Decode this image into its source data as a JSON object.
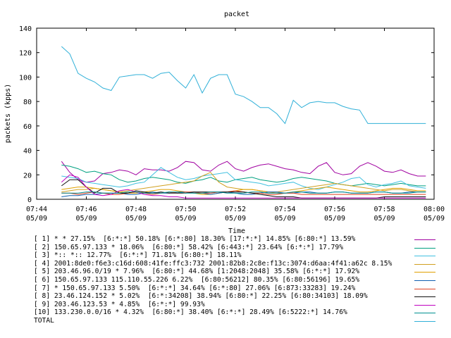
{
  "chart_data": {
    "type": "line",
    "title": "packet",
    "xlabel": "Time",
    "ylabel": "packets (kpps)",
    "ylim": [
      0,
      140
    ],
    "yticks": [
      0,
      20,
      40,
      60,
      80,
      100,
      120,
      140
    ],
    "xlim": [
      "07:44",
      "08:00"
    ],
    "xticks": [
      {
        "time": "07:44",
        "date": "05/09"
      },
      {
        "time": "07:46",
        "date": "05/09"
      },
      {
        "time": "07:48",
        "date": "05/09"
      },
      {
        "time": "07:50",
        "date": "05/09"
      },
      {
        "time": "07:52",
        "date": "05/09"
      },
      {
        "time": "07:54",
        "date": "05/09"
      },
      {
        "time": "07:56",
        "date": "05/09"
      },
      {
        "time": "07:58",
        "date": "05/09"
      },
      {
        "time": "08:00",
        "date": "05/09"
      }
    ],
    "x": [
      "07:45",
      "07:45:20",
      "07:45:40",
      "07:46",
      "07:46:20",
      "07:46:40",
      "07:47",
      "07:47:20",
      "07:47:40",
      "07:48",
      "07:48:20",
      "07:48:40",
      "07:49",
      "07:49:20",
      "07:49:40",
      "07:50",
      "07:50:20",
      "07:50:40",
      "07:51",
      "07:51:20",
      "07:51:40",
      "07:52",
      "07:52:20",
      "07:52:40",
      "07:53",
      "07:53:20",
      "07:53:40",
      "07:54",
      "07:54:20",
      "07:54:40",
      "07:55",
      "07:55:20",
      "07:55:40",
      "07:56",
      "07:56:20",
      "07:56:40",
      "07:57",
      "07:57:20",
      "07:57:40",
      "07:58",
      "07:58:20",
      "07:58:40",
      "07:59",
      "07:59:20",
      "07:59:40"
    ],
    "series": [
      {
        "legend": "[ 1] * * 27.15%  [6:*:*] 50.18% [6:*:80] 18.30% [17:*:*] 14.85% [6:80:*] 13.59%",
        "color": "#a000a0",
        "values": [
          31,
          22,
          16,
          14,
          15,
          21,
          22,
          24,
          23,
          20,
          25,
          24,
          24,
          23,
          26,
          31,
          30,
          24,
          23,
          28,
          31,
          25,
          23,
          26,
          28,
          29,
          27,
          25,
          24,
          22,
          21,
          27,
          30,
          22,
          20,
          21,
          27,
          30,
          27,
          23,
          22,
          24,
          21,
          19,
          19
        ]
      },
      {
        "legend": "[ 2] 150.65.97.133 * 18.06%  [6:80:*] 58.42% [6:443:*] 23.64% [6:*:*] 17.79%",
        "color": "#00a080",
        "values": [
          28,
          27,
          25,
          22,
          23,
          21,
          20,
          16,
          14,
          15,
          17,
          18,
          17,
          16,
          14,
          13,
          15,
          16,
          18,
          15,
          14,
          16,
          17,
          18,
          16,
          15,
          14,
          15,
          17,
          18,
          17,
          16,
          15,
          13,
          12,
          11,
          12,
          13,
          12,
          11,
          12,
          13,
          12,
          11,
          11
        ]
      },
      {
        "legend": "[ 3] *:: *:: 12.77%  [6:*:*] 71.81% [6:80:*] 18.11%",
        "color": "#40c0e0",
        "values": [
          19,
          18,
          17,
          14,
          13,
          12,
          11,
          10,
          11,
          13,
          14,
          20,
          26,
          22,
          18,
          16,
          17,
          19,
          20,
          21,
          22,
          16,
          15,
          14,
          13,
          11,
          12,
          13,
          14,
          11,
          9,
          8,
          10,
          12,
          14,
          17,
          18,
          12,
          10,
          12,
          13,
          15,
          11,
          10,
          9
        ]
      },
      {
        "legend": "[ 4] 2001:8de0:f6e3:c16d:608:41fe:ffc3:732 2001:82b8:2c8e:f13c:3074:d6aa:4f41:a62c 8.15%",
        "color": "#d0a020",
        "values": [
          6,
          7,
          8,
          8,
          9,
          8,
          7,
          6,
          7,
          8,
          9,
          10,
          11,
          12,
          13,
          14,
          15,
          19,
          22,
          14,
          10,
          9,
          8,
          8,
          7,
          6,
          6,
          7,
          8,
          9,
          10,
          11,
          12,
          13,
          12,
          11,
          10,
          9,
          8,
          7,
          8,
          8,
          7,
          6,
          6
        ]
      },
      {
        "legend": "[ 5] 203.46.96.0/19 * 7.96%  [6:80:*] 44.68% [1:2048:2048] 35.58% [6:*:*] 17.92%",
        "color": "#e0a000",
        "values": [
          8,
          9,
          10,
          10,
          9,
          8,
          7,
          6,
          5,
          5,
          6,
          7,
          8,
          8,
          7,
          6,
          5,
          4,
          4,
          5,
          6,
          7,
          8,
          8,
          7,
          6,
          5,
          5,
          6,
          7,
          8,
          9,
          10,
          9,
          8,
          7,
          6,
          6,
          7,
          8,
          9,
          9,
          8,
          7,
          7
        ]
      },
      {
        "legend": "[ 6] 150.65.97.133 115.110.55.226 6.22%  [6:80:56212] 80.35% [6:80:56196] 19.65%",
        "color": "#1060b0",
        "values": [
          2,
          3,
          3,
          4,
          4,
          5,
          5,
          5,
          4,
          4,
          5,
          6,
          5,
          5,
          6,
          6,
          5,
          5,
          4,
          5,
          6,
          5,
          4,
          4,
          5,
          6,
          6,
          5,
          5,
          6,
          6,
          5,
          5,
          6,
          6,
          5,
          5,
          5,
          6,
          6,
          5,
          5,
          6,
          6,
          6
        ]
      },
      {
        "legend": "[ 7] * 150.65.97.133 5.50%  [6:*:*] 34.64% [6:*:80] 27.06% [6:873:33283] 19.24%",
        "color": "#e04020",
        "values": [
          5,
          5,
          4,
          5,
          6,
          5,
          4,
          4,
          5,
          6,
          5,
          4,
          5,
          6,
          5,
          6,
          6,
          5,
          5,
          6,
          6,
          7,
          6,
          5,
          5,
          4,
          4,
          5,
          5,
          4,
          4,
          4,
          4,
          4,
          4,
          4,
          4,
          4,
          4,
          4,
          4,
          4,
          4,
          4,
          4
        ]
      },
      {
        "legend": "[ 8] 23.46.124.152 * 5.02%  [6:*:34208] 38.94% [6:80:*] 22.25% [6:80:34103] 18.09%",
        "color": "#101010",
        "values": [
          11,
          16,
          16,
          10,
          5,
          9,
          9,
          5,
          5,
          7,
          6,
          5,
          6,
          5,
          5,
          5,
          6,
          6,
          6,
          6,
          6,
          6,
          6,
          5,
          4,
          3,
          2,
          2,
          2,
          1,
          1,
          1,
          1,
          1,
          1,
          1,
          1,
          1,
          1,
          2,
          2,
          2,
          2,
          2,
          2
        ]
      },
      {
        "legend": "[ 9] 203.46.123.53 * 4.85%  [6:*:*] 99.93%",
        "color": "#c000c0",
        "values": [
          14,
          20,
          18,
          10,
          4,
          3,
          4,
          7,
          8,
          6,
          4,
          3,
          3,
          2,
          2,
          1,
          1,
          1,
          1,
          1,
          1,
          1,
          1,
          1,
          1,
          1,
          1,
          1,
          1,
          1,
          1,
          1,
          1,
          1,
          1,
          1,
          1,
          1,
          1,
          1,
          1,
          1,
          1,
          1,
          1
        ]
      },
      {
        "legend": "[10] 133.230.0.0/16 * 4.32%  [6:80:*] 38.40% [6:*:*] 28.49% [6:5222:*] 14.76%",
        "color": "#009090",
        "values": [
          5,
          5,
          5,
          6,
          6,
          5,
          5,
          5,
          6,
          6,
          5,
          5,
          5,
          6,
          6,
          5,
          5,
          5,
          6,
          6,
          5,
          5,
          5,
          6,
          6,
          5,
          5,
          5,
          6,
          6,
          5,
          5,
          5,
          6,
          6,
          5,
          5,
          5,
          6,
          6,
          5,
          5,
          5,
          6,
          6
        ]
      },
      {
        "legend": "TOTAL",
        "color": "#30b0d8",
        "values": [
          125,
          119,
          103,
          99,
          96,
          91,
          89,
          100,
          101,
          102,
          102,
          99,
          103,
          104,
          97,
          91,
          102,
          87,
          99,
          102,
          102,
          86,
          84,
          80,
          75,
          75,
          70,
          62,
          81,
          75,
          79,
          80,
          79,
          79,
          76,
          74,
          73,
          62,
          62,
          62,
          62,
          62,
          62,
          62,
          62
        ]
      }
    ]
  }
}
